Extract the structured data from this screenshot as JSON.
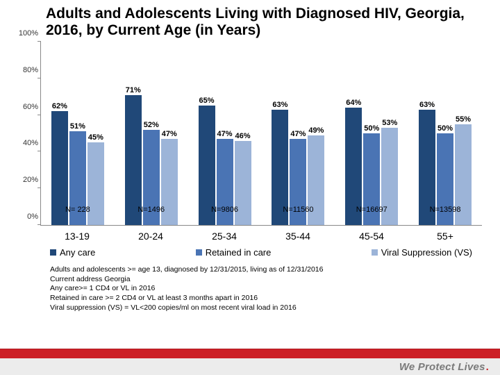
{
  "title": "Adults and Adolescents Living with Diagnosed HIV,  Georgia, 2016, by Current Age (in Years)",
  "chart": {
    "type": "grouped-bar",
    "ylim": [
      0,
      100
    ],
    "ytick_step": 20,
    "ytick_suffix": "%",
    "y_axis_color": "#888888",
    "background_color": "#ffffff",
    "series": [
      {
        "name": "Any care",
        "color": "#204878"
      },
      {
        "name": "Retained in care",
        "color": "#4a74b4"
      },
      {
        "name": "Viral Suppression (VS)",
        "color": "#9cb4d8"
      }
    ],
    "categories": [
      "13-19",
      "20-24",
      "25-34",
      "35-44",
      "45-54",
      "55+"
    ],
    "n_labels": [
      "N= 228",
      "N=1496",
      "N=9806",
      "N=11560",
      "N=16697",
      "N=13598"
    ],
    "values": [
      [
        62,
        51,
        45
      ],
      [
        71,
        52,
        47
      ],
      [
        65,
        47,
        46
      ],
      [
        63,
        47,
        49
      ],
      [
        64,
        50,
        53
      ],
      [
        63,
        50,
        55
      ]
    ],
    "label_fontsize": 11,
    "xlabel_fontsize": 14,
    "n_label_bottom_pct": 6
  },
  "legend": {
    "items": [
      {
        "color": "#204878",
        "label": "Any care"
      },
      {
        "color": "#4a74b4",
        "label": "Retained in care"
      },
      {
        "color": "#9cb4d8",
        "label": "Viral Suppression (VS)"
      }
    ]
  },
  "footnotes": [
    "Adults and adolescents >= age 13, diagnosed by 12/31/2015, living as of 12/31/2016",
    "Current address Georgia",
    "Any care>= 1 CD4 or VL in 2016",
    "Retained in care >= 2 CD4 or VL at least 3 months apart in 2016",
    "Viral suppression (VS) = VL<200 copies/ml on most recent viral load in 2016"
  ],
  "footer": {
    "tagline": "We Protect Lives",
    "red": "#cc2027",
    "grey": "#ececec",
    "tagline_color": "#7a7a7a"
  }
}
